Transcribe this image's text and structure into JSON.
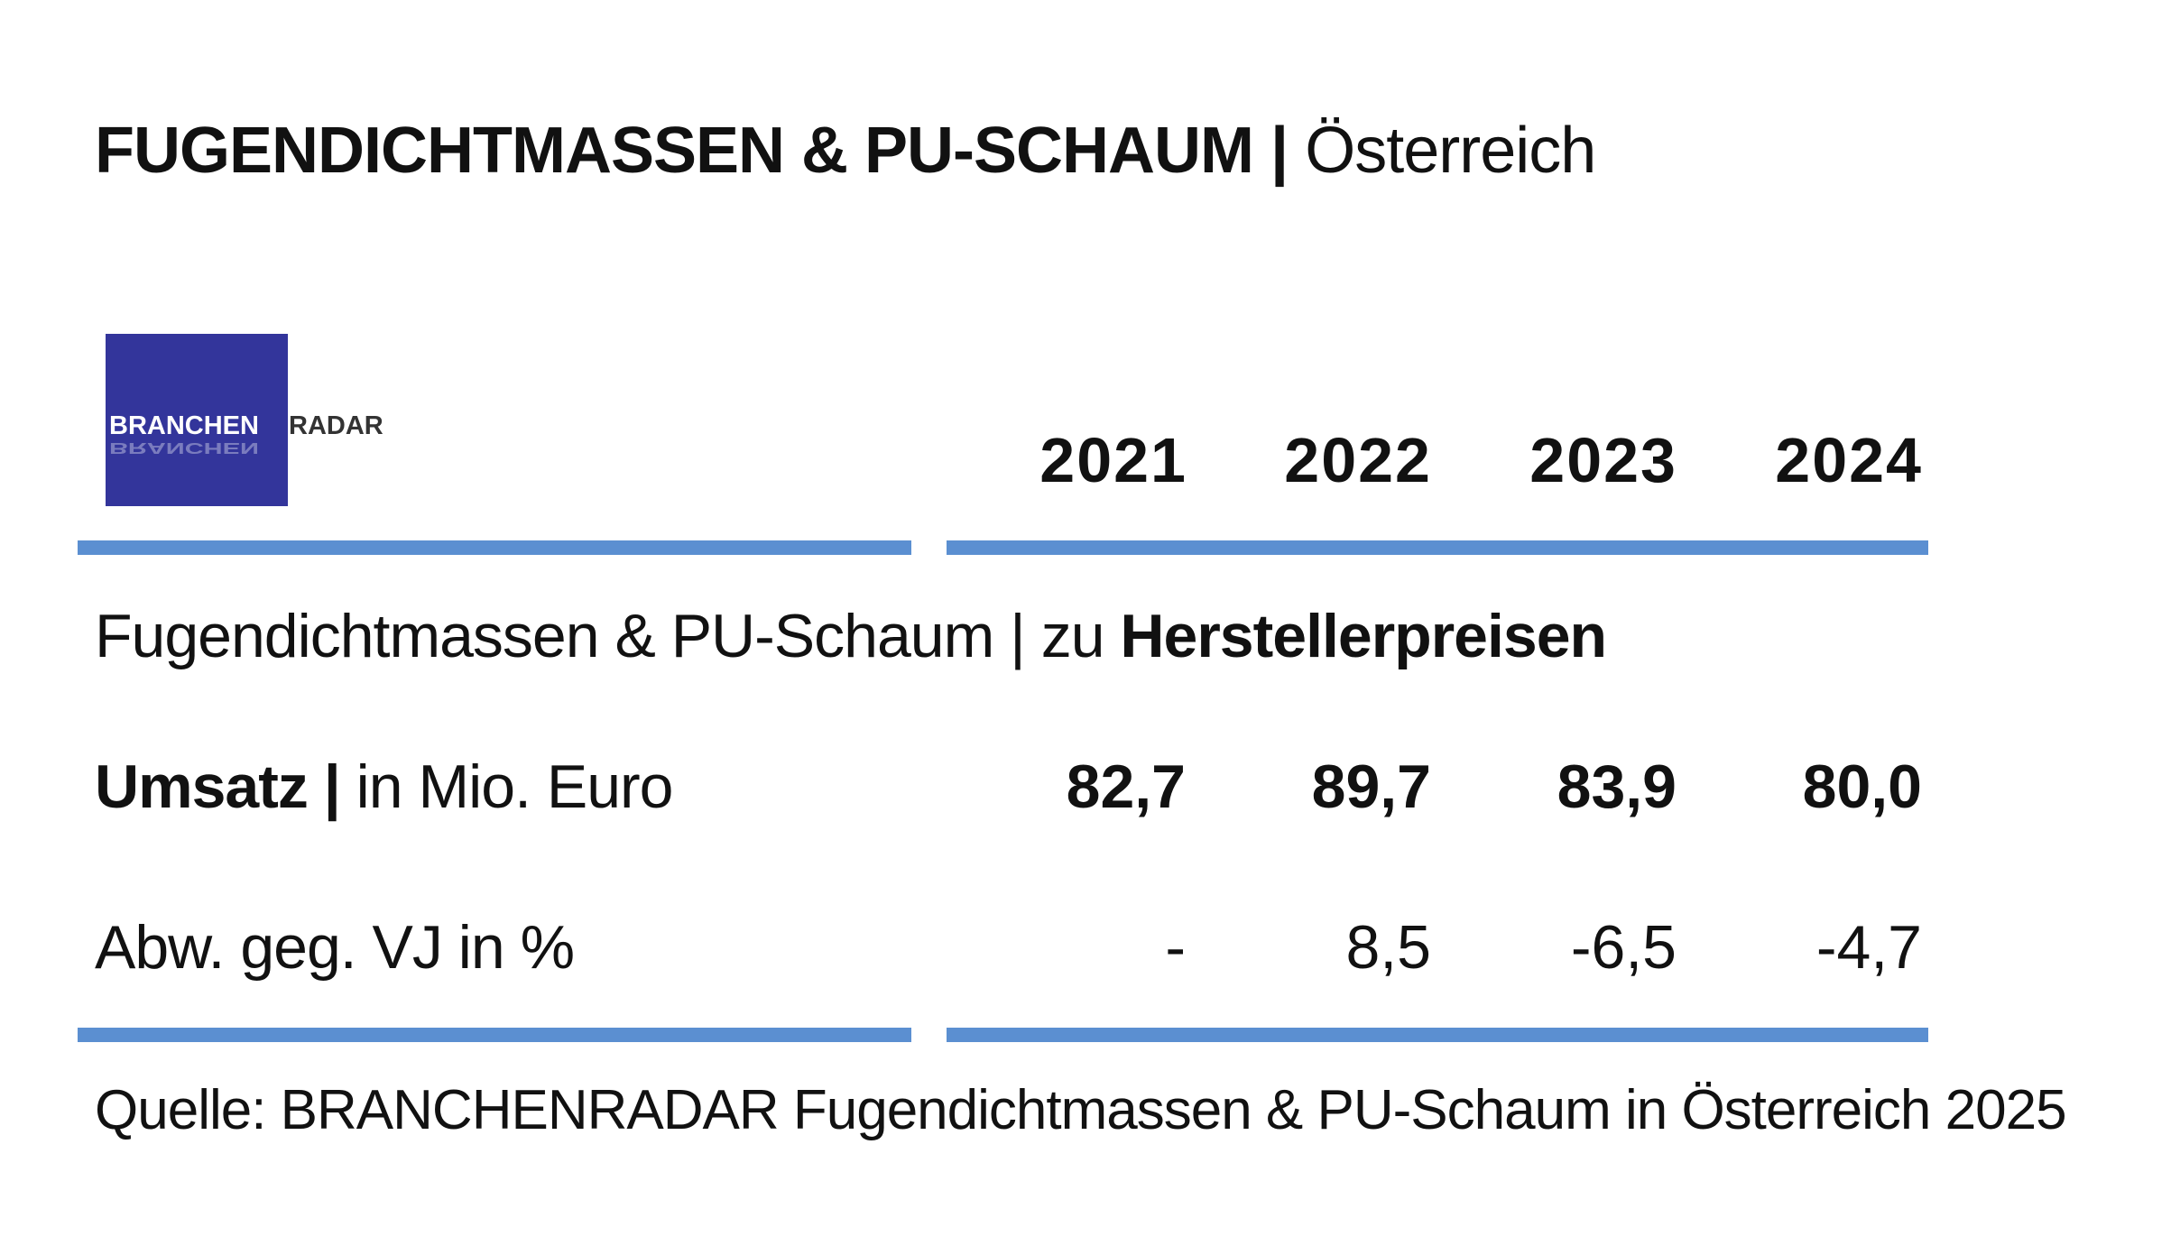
{
  "title": {
    "bold_part": "FUGENDICHTMASSEN & PU-SCHAUM",
    "separator": "|",
    "light_part": "Österreich"
  },
  "logo": {
    "text_left": "BRANCHEN",
    "text_right": "RADAR",
    "background_color": "#33359b"
  },
  "section": {
    "prefix": "Fugendichtmassen & PU-Schaum | zu ",
    "emphasis": "Herstellerpreisen"
  },
  "colors": {
    "rule": "#5b8fd1",
    "text": "#111111"
  },
  "chart_data": {
    "type": "table",
    "columns": [
      "2021",
      "2022",
      "2023",
      "2024"
    ],
    "rows": [
      {
        "label_bold": "Umsatz |",
        "label_rest": " in Mio. Euro",
        "values": [
          "82,7",
          "89,7",
          "83,9",
          "80,0"
        ]
      },
      {
        "label_bold": "",
        "label_rest": "Abw. geg. VJ in %",
        "values": [
          "-",
          "8,5",
          "-6,5",
          "-4,7"
        ]
      }
    ]
  },
  "source": "Quelle: BRANCHENRADAR Fugendichtmassen & PU-Schaum in Österreich 2025"
}
